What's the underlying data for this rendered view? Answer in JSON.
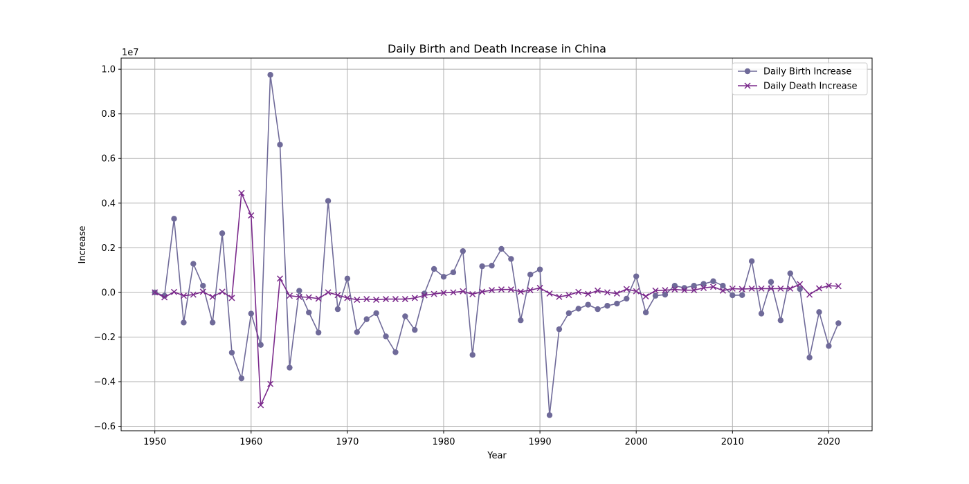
{
  "chart_data": {
    "type": "line",
    "title": "Daily Birth and Death Increase in China",
    "xlabel": "Year",
    "ylabel": "Increase",
    "y_offset_text": "1e7",
    "y_multiplier": 10000000,
    "xlim": [
      1946.5,
      2024.5
    ],
    "ylim": [
      -0.62,
      1.05
    ],
    "xticks": [
      1950,
      1960,
      1970,
      1980,
      1990,
      2000,
      2010,
      2020
    ],
    "yticks": [
      -0.6,
      -0.4,
      -0.2,
      0.0,
      0.2,
      0.4,
      0.6,
      0.8,
      1.0
    ],
    "ytick_labels": [
      "−0.6",
      "−0.4",
      "−0.2",
      "0.0",
      "0.2",
      "0.4",
      "0.6",
      "0.8",
      "1.0"
    ],
    "grid": true,
    "legend_position": "top-right",
    "x": [
      1950,
      1951,
      1952,
      1953,
      1954,
      1955,
      1956,
      1957,
      1958,
      1959,
      1960,
      1961,
      1962,
      1963,
      1964,
      1965,
      1966,
      1967,
      1968,
      1969,
      1970,
      1971,
      1972,
      1973,
      1974,
      1975,
      1976,
      1977,
      1978,
      1979,
      1980,
      1981,
      1982,
      1983,
      1984,
      1985,
      1986,
      1987,
      1988,
      1989,
      1990,
      1991,
      1992,
      1993,
      1994,
      1995,
      1996,
      1997,
      1998,
      1999,
      2000,
      2001,
      2002,
      2003,
      2004,
      2005,
      2006,
      2007,
      2008,
      2009,
      2010,
      2011,
      2012,
      2013,
      2014,
      2015,
      2016,
      2017,
      2018,
      2019,
      2020,
      2021
    ],
    "series": [
      {
        "name": "Daily Birth Increase",
        "color": "#6f6a99",
        "marker": "circle",
        "values": [
          0.0,
          -0.015,
          0.33,
          -0.135,
          0.128,
          0.03,
          -0.135,
          0.265,
          -0.27,
          -0.385,
          -0.095,
          -0.235,
          0.975,
          0.662,
          -0.337,
          0.007,
          -0.09,
          -0.18,
          0.41,
          -0.075,
          0.062,
          -0.178,
          -0.12,
          -0.093,
          -0.197,
          -0.268,
          -0.107,
          -0.168,
          -0.005,
          0.105,
          0.07,
          0.09,
          0.185,
          -0.28,
          0.117,
          0.12,
          0.195,
          0.15,
          -0.125,
          0.08,
          0.103,
          -0.55,
          -0.165,
          -0.093,
          -0.073,
          -0.055,
          -0.075,
          -0.06,
          -0.05,
          -0.028,
          0.072,
          -0.09,
          -0.015,
          -0.01,
          0.03,
          0.02,
          0.03,
          0.038,
          0.05,
          0.03,
          -0.013,
          -0.012,
          0.14,
          -0.095,
          0.047,
          -0.125,
          0.085,
          0.015,
          -0.292,
          -0.088,
          -0.24,
          -0.138
        ]
      },
      {
        "name": "Daily Death Increase",
        "color": "#7b2a8c",
        "marker": "x",
        "values": [
          0.0,
          -0.022,
          0.002,
          -0.015,
          -0.01,
          0.003,
          -0.02,
          0.003,
          -0.025,
          0.445,
          0.345,
          -0.505,
          -0.41,
          0.062,
          -0.015,
          -0.02,
          -0.022,
          -0.028,
          0.0,
          -0.012,
          -0.025,
          -0.033,
          -0.03,
          -0.033,
          -0.03,
          -0.03,
          -0.03,
          -0.025,
          -0.013,
          -0.007,
          -0.002,
          0.0,
          0.005,
          -0.008,
          0.003,
          0.01,
          0.013,
          0.013,
          0.003,
          0.01,
          0.02,
          -0.005,
          -0.02,
          -0.012,
          0.002,
          -0.007,
          0.008,
          0.0,
          -0.005,
          0.015,
          0.005,
          -0.018,
          0.008,
          0.01,
          0.013,
          0.01,
          0.01,
          0.02,
          0.025,
          0.008,
          0.017,
          0.015,
          0.017,
          0.017,
          0.017,
          0.017,
          0.017,
          0.037,
          -0.01,
          0.018,
          0.03,
          0.028
        ]
      }
    ]
  }
}
